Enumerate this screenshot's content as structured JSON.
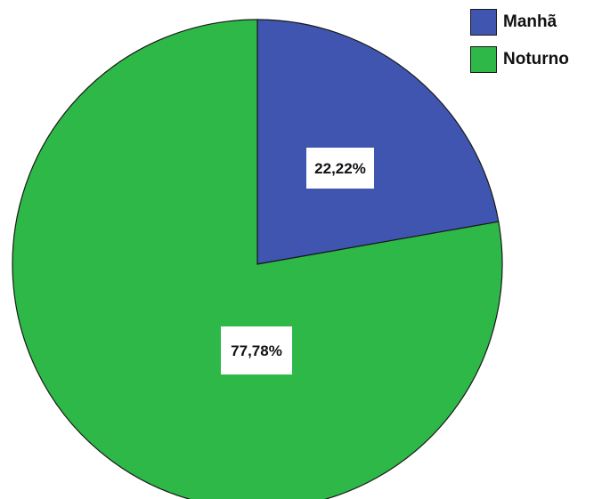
{
  "chart_data": {
    "type": "pie",
    "categories": [
      "Manhã",
      "Noturno"
    ],
    "values": [
      22.22,
      77.78
    ],
    "data_labels": [
      "22,22%",
      "77,78%"
    ],
    "colors": [
      "#3f55b0",
      "#2db847"
    ],
    "start_angle_deg": 0,
    "direction": "clockwise",
    "legend": {
      "position": "top-right",
      "entries": [
        "Manhã",
        "Noturno"
      ]
    }
  }
}
